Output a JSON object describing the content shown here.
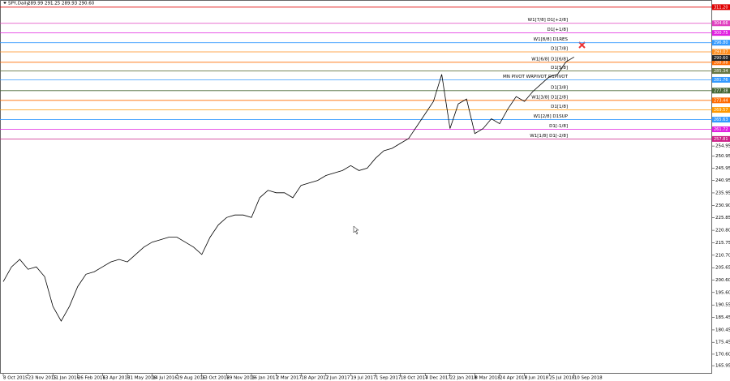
{
  "chart_data": {
    "type": "line",
    "title": "SPY,Daily",
    "ohlc": "289.99 291.25 289.93 290.60",
    "categories": [
      "8 Oct 2015",
      null,
      null,
      "23 Nov 2015",
      null,
      null,
      "11 Jan 2016",
      null,
      null,
      "26 Feb 2016",
      null,
      null,
      "13 Apr 2016",
      null,
      null,
      "31 May 2016",
      null,
      null,
      "14 Jul 2016",
      null,
      null,
      "29 Aug 2016",
      null,
      null,
      "13 Oct 2016",
      null,
      null,
      "29 Nov 2016",
      null,
      null,
      "16 Jan 2017",
      null,
      null,
      "2 Mar 2017",
      null,
      null,
      "18 Apr 2017",
      null,
      null,
      "2 Jun 2017",
      null,
      null,
      "19 Jul 2017",
      null,
      null,
      "1 Sep 2017",
      null,
      null,
      "18 Oct 2017",
      null,
      null,
      "4 Dec 2017",
      null,
      null,
      "22 Jan 2018",
      null,
      null,
      "8 Mar 2018",
      null,
      null,
      "24 Apr 2018",
      null,
      null,
      "8 Jun 2018",
      null,
      null,
      "25 Jul 2018",
      null,
      null,
      "10 Sep 2018"
    ],
    "series": [
      {
        "name": "SPY",
        "color": "#000000",
        "values": [
          200,
          206,
          209,
          205,
          206,
          202,
          190,
          184,
          190,
          198,
          203,
          204,
          206,
          208,
          209,
          208,
          211,
          214,
          216,
          217,
          218,
          218,
          216,
          214,
          211,
          218,
          223,
          226,
          227,
          227,
          226,
          234,
          237,
          236,
          236,
          234,
          239,
          240,
          241,
          243,
          244,
          245,
          247,
          245,
          246,
          250,
          253,
          254,
          256,
          258,
          263,
          268,
          273,
          284,
          262,
          272,
          274,
          260,
          262,
          266,
          264,
          270,
          275,
          273,
          277,
          280,
          283,
          284,
          289,
          291
        ]
      }
    ],
    "ylim": [
      162.7,
      314.1
    ],
    "yticks": [
      165.95,
      {
        "value": 170.6,
        "label": "170.60"
      },
      175.45,
      180.45,
      185.45,
      190.55,
      {
        "value": 195.6,
        "label": "195.60"
      },
      {
        "value": 200.6,
        "label": "200.60"
      },
      205.65,
      {
        "value": 210.7,
        "label": "210.70"
      },
      215.75,
      {
        "value": 220.8,
        "label": "220.80"
      },
      225.85,
      {
        "value": 230.9,
        "label": "230.90"
      },
      235.95,
      240.95,
      245.95,
      250.95,
      254.95
    ],
    "levels": [
      {
        "value": 311.2,
        "tag": "311.20",
        "color": "#e00000"
      },
      {
        "value": 304.66,
        "name": "W1[7/8] D1[+2/8]",
        "color": "#e040c0"
      },
      {
        "value": 300.75,
        "name": "D1[+1/8]",
        "color": "#e020e0"
      },
      {
        "value": 296.8,
        "tag": "296.80",
        "name": "W1[8/8] D1RES",
        "color": "#3399ff"
      },
      {
        "value": 293.07,
        "name": "D1[7/8]",
        "color": "#ff8c1a"
      },
      {
        "value": 288.88,
        "name": "W1[6/8] D1[6/8]",
        "color": "#ff6a00"
      },
      {
        "value": 285.34,
        "name": "D1[5/8]",
        "color": "#667744"
      },
      {
        "value": 281.76,
        "name": "MN PIVOT WRPIVOT D1PIVOT",
        "color": "#3399ff"
      },
      {
        "value": 277.38,
        "name": "D1[3/8]",
        "color": "#446633"
      },
      {
        "value": 273.44,
        "name": "W1[3/8] D1[2/8]",
        "color": "#ff6a00"
      },
      {
        "value": 269.57,
        "name": "D1[1/8]",
        "color": "#ff9900"
      },
      {
        "value": 265.63,
        "name": "W1[2/8] D1SUP",
        "color": "#3399ff"
      },
      {
        "value": 261.72,
        "name": "D1[-1/8]",
        "color": "#e020e0"
      },
      {
        "value": 257.81,
        "name": "W1[1/8] D1[-2/8]",
        "color": "#cc2288"
      }
    ],
    "current_price": {
      "value": 290.6,
      "label": "290.60"
    },
    "grid": false
  }
}
